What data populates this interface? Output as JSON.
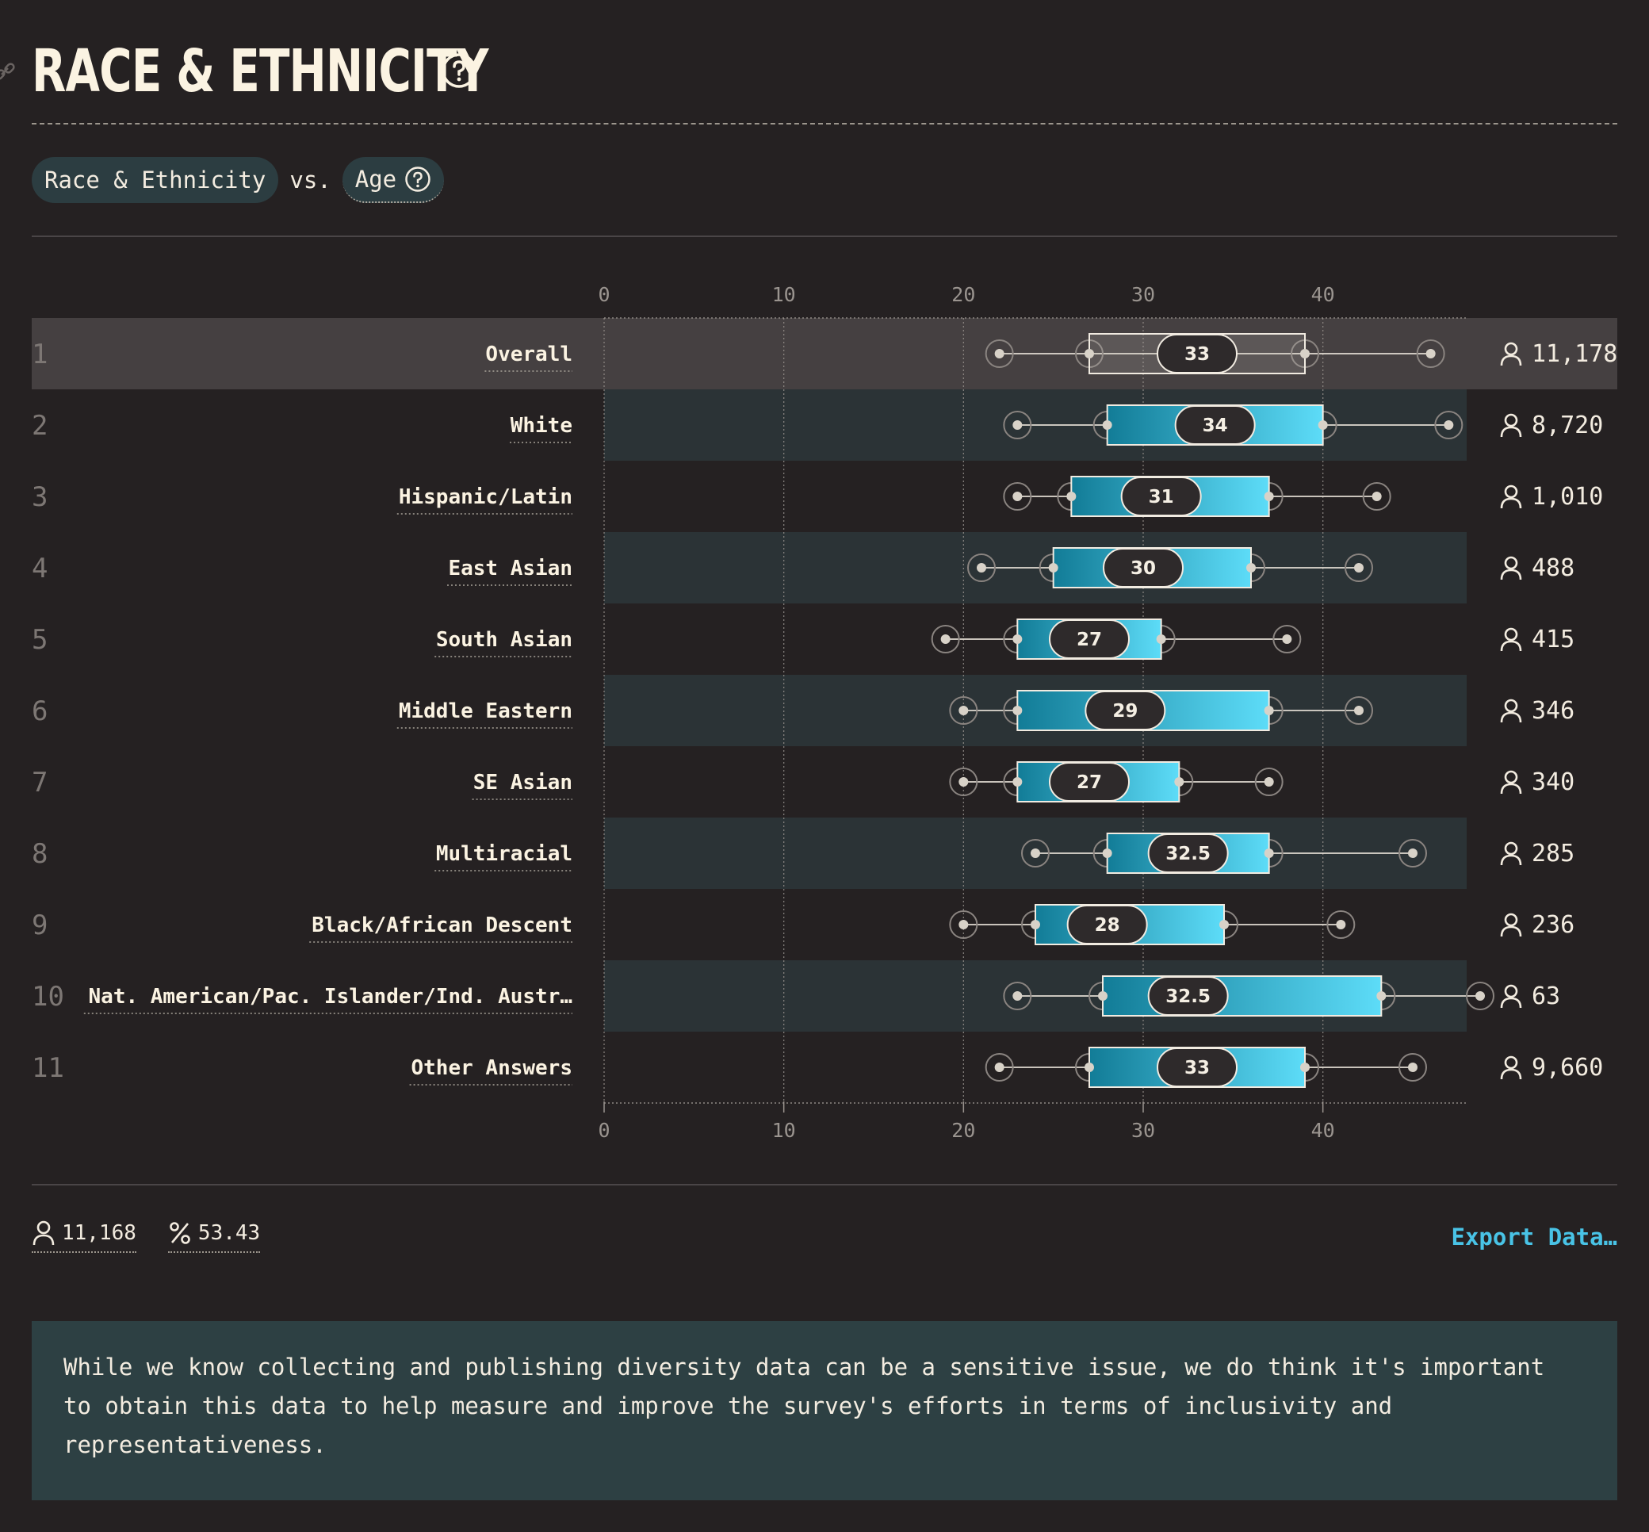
{
  "header": {
    "title": "RACE & ETHNICITY"
  },
  "compare": {
    "left": "Race & Ethnicity",
    "vs": "vs.",
    "right": "Age"
  },
  "chart_data": {
    "type": "boxplot",
    "xlim": [
      0,
      48
    ],
    "ticks": [
      0,
      10,
      20,
      30,
      40
    ],
    "rows": [
      {
        "rank": "1",
        "label": "Overall",
        "min": 22,
        "q1": 27,
        "median": 33,
        "q3": 39,
        "max": 46,
        "median_label": "33",
        "count": "11,178",
        "highlight": true
      },
      {
        "rank": "2",
        "label": "White",
        "min": 23,
        "q1": 28,
        "median": 34,
        "q3": 40,
        "max": 47,
        "median_label": "34",
        "count": "8,720"
      },
      {
        "rank": "3",
        "label": "Hispanic/Latin",
        "min": 23,
        "q1": 26,
        "median": 31,
        "q3": 37,
        "max": 43,
        "median_label": "31",
        "count": "1,010"
      },
      {
        "rank": "4",
        "label": "East Asian",
        "min": 21,
        "q1": 25,
        "median": 30,
        "q3": 36,
        "max": 42,
        "median_label": "30",
        "count": "488"
      },
      {
        "rank": "5",
        "label": "South Asian",
        "min": 19,
        "q1": 23,
        "median": 27,
        "q3": 31,
        "max": 38,
        "median_label": "27",
        "count": "415"
      },
      {
        "rank": "6",
        "label": "Middle Eastern",
        "min": 20,
        "q1": 23,
        "median": 29,
        "q3": 37,
        "max": 42,
        "median_label": "29",
        "count": "346"
      },
      {
        "rank": "7",
        "label": "SE Asian",
        "min": 20,
        "q1": 23,
        "median": 27,
        "q3": 32,
        "max": 37,
        "median_label": "27",
        "count": "340"
      },
      {
        "rank": "8",
        "label": "Multiracial",
        "min": 24,
        "q1": 28,
        "median": 32.5,
        "q3": 37,
        "max": 45,
        "median_label": "32.5",
        "count": "285"
      },
      {
        "rank": "9",
        "label": "Black/African Descent",
        "min": 20,
        "q1": 24,
        "median": 28,
        "q3": 34.5,
        "max": 41,
        "median_label": "28",
        "count": "236"
      },
      {
        "rank": "10",
        "label": "Nat. American/Pac. Islander/Ind. Austr…",
        "min": 23,
        "q1": 27.75,
        "median": 32.5,
        "q3": 43.25,
        "max": 48.75,
        "median_label": "32.5",
        "count": "63"
      },
      {
        "rank": "11",
        "label": "Other Answers",
        "min": 22,
        "q1": 27,
        "median": 33,
        "q3": 39,
        "max": 45,
        "median_label": "33",
        "count": "9,660"
      }
    ]
  },
  "footer": {
    "respondents": "11,168",
    "percent": "53.43",
    "export_label": "Export Data…"
  },
  "note": "While we know collecting and publishing diversity data can be a sensitive issue, we do think it's important to obtain this data to help measure and improve the survey's efforts in terms of inclusivity and representativeness.",
  "colors": {
    "background": "#252122",
    "stripe": "#2b3336",
    "highlight": "#454041",
    "box_left": "#127c97",
    "box_right": "#5ddcf8",
    "accent": "#49c3e6"
  }
}
